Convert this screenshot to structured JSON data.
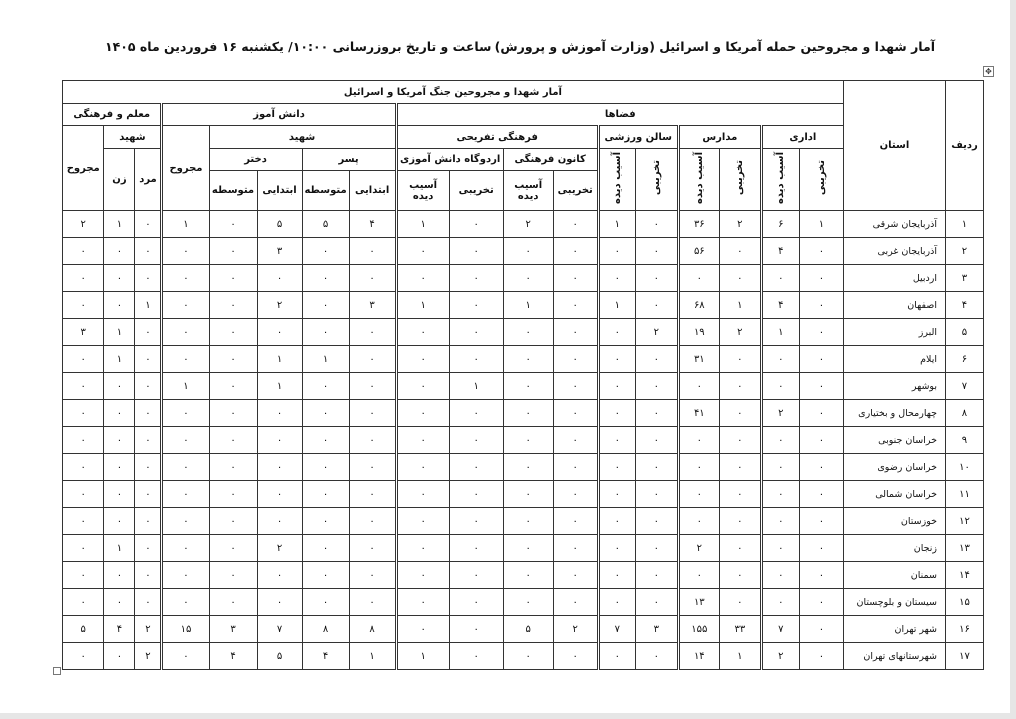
{
  "document": {
    "title": "آمار شهدا و مجروحین حمله آمریکا و اسرائیل (وزارت آموزش و پرورش)",
    "updated": "ساعت و تاریخ بروزرسانی ۱۰:۰۰/ یکشنبه ۱۶ فروردین ماه ۱۴۰۵"
  },
  "table": {
    "title": "آمار شهدا و مجروحین جنگ آمریکا و اسرائیل",
    "col_row": "ردیف",
    "col_province": "استان",
    "groups": {
      "spaces": "فضاها",
      "students": "دانش آموز",
      "teachers": "معلم و فرهنگی"
    },
    "sub": {
      "admin": "اداری",
      "schools": "مدارس",
      "gym": "سالن ورزشی",
      "cultural": "فرهنگی تفریحی",
      "kanoon": "کانون فرهنگی",
      "camp": "اردوگاه دانش آموزی",
      "martyr": "شهید",
      "boy": "پسر",
      "girl": "دختر",
      "injured": "مجروح",
      "destroyed": "تخریبی",
      "damaged": "آسیب دیده",
      "primary": "ابتدایی",
      "secondary": "متوسطه",
      "male": "مرد",
      "female": "زن"
    },
    "rows": [
      {
        "n": 1,
        "province": "آذربایجان شرقی",
        "values": [
          1,
          6,
          2,
          36,
          0,
          1,
          0,
          2,
          0,
          1,
          4,
          5,
          5,
          0,
          1,
          0,
          1,
          2
        ]
      },
      {
        "n": 2,
        "province": "آذربایجان غربی",
        "values": [
          0,
          4,
          0,
          56,
          0,
          0,
          0,
          0,
          0,
          0,
          0,
          0,
          3,
          0,
          0,
          0,
          0,
          0
        ]
      },
      {
        "n": 3,
        "province": "اردبیل",
        "values": [
          0,
          0,
          0,
          0,
          0,
          0,
          0,
          0,
          0,
          0,
          0,
          0,
          0,
          0,
          0,
          0,
          0,
          0
        ]
      },
      {
        "n": 4,
        "province": "اصفهان",
        "values": [
          0,
          4,
          1,
          68,
          0,
          1,
          0,
          1,
          0,
          1,
          3,
          0,
          2,
          0,
          0,
          1,
          0,
          0
        ]
      },
      {
        "n": 5,
        "province": "البرز",
        "values": [
          0,
          1,
          2,
          19,
          2,
          0,
          0,
          0,
          0,
          0,
          0,
          0,
          0,
          0,
          0,
          0,
          1,
          3
        ]
      },
      {
        "n": 6,
        "province": "ایلام",
        "values": [
          0,
          0,
          0,
          31,
          0,
          0,
          0,
          0,
          0,
          0,
          0,
          1,
          1,
          0,
          0,
          0,
          1,
          0
        ]
      },
      {
        "n": 7,
        "province": "بوشهر",
        "values": [
          0,
          0,
          0,
          0,
          0,
          0,
          0,
          0,
          1,
          0,
          0,
          0,
          1,
          0,
          1,
          0,
          0,
          0
        ]
      },
      {
        "n": 8,
        "province": "چهارمحال و بختیاری",
        "values": [
          0,
          2,
          0,
          41,
          0,
          0,
          0,
          0,
          0,
          0,
          0,
          0,
          0,
          0,
          0,
          0,
          0,
          0
        ]
      },
      {
        "n": 9,
        "province": "خراسان جنوبی",
        "values": [
          0,
          0,
          0,
          0,
          0,
          0,
          0,
          0,
          0,
          0,
          0,
          0,
          0,
          0,
          0,
          0,
          0,
          0
        ]
      },
      {
        "n": 10,
        "province": "خراسان رضوی",
        "values": [
          0,
          0,
          0,
          0,
          0,
          0,
          0,
          0,
          0,
          0,
          0,
          0,
          0,
          0,
          0,
          0,
          0,
          0
        ]
      },
      {
        "n": 11,
        "province": "خراسان شمالی",
        "values": [
          0,
          0,
          0,
          0,
          0,
          0,
          0,
          0,
          0,
          0,
          0,
          0,
          0,
          0,
          0,
          0,
          0,
          0
        ]
      },
      {
        "n": 12,
        "province": "خوزستان",
        "values": [
          0,
          0,
          0,
          0,
          0,
          0,
          0,
          0,
          0,
          0,
          0,
          0,
          0,
          0,
          0,
          0,
          0,
          0
        ]
      },
      {
        "n": 13,
        "province": "زنجان",
        "values": [
          0,
          0,
          0,
          2,
          0,
          0,
          0,
          0,
          0,
          0,
          0,
          0,
          2,
          0,
          0,
          0,
          1,
          0
        ]
      },
      {
        "n": 14,
        "province": "سمنان",
        "values": [
          0,
          0,
          0,
          0,
          0,
          0,
          0,
          0,
          0,
          0,
          0,
          0,
          0,
          0,
          0,
          0,
          0,
          0
        ]
      },
      {
        "n": 15,
        "province": "سیستان و بلوچستان",
        "values": [
          0,
          0,
          0,
          13,
          0,
          0,
          0,
          0,
          0,
          0,
          0,
          0,
          0,
          0,
          0,
          0,
          0,
          0
        ]
      },
      {
        "n": 16,
        "province": "شهر تهران",
        "values": [
          0,
          7,
          33,
          155,
          3,
          7,
          2,
          5,
          0,
          0,
          8,
          8,
          7,
          3,
          15,
          2,
          4,
          5
        ]
      },
      {
        "n": 17,
        "province": "شهرستانهای تهران",
        "values": [
          0,
          2,
          1,
          14,
          0,
          0,
          0,
          0,
          0,
          1,
          1,
          4,
          5,
          4,
          0,
          2,
          0,
          0
        ]
      }
    ]
  }
}
